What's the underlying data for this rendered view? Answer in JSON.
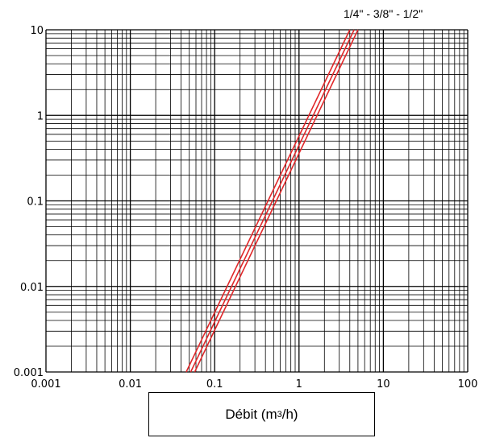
{
  "chart_data": {
    "type": "line",
    "x_scale": "log",
    "y_scale": "log",
    "xlim": [
      0.001,
      100
    ],
    "ylim": [
      0.001,
      10
    ],
    "x_ticks": [
      "0.001",
      "0.01",
      "0.1",
      "1",
      "10",
      "100"
    ],
    "y_ticks": [
      "0.001",
      "0.01",
      "0.1",
      "1",
      "10"
    ],
    "grid": true,
    "xlabel_prefix": "Débit (m",
    "xlabel_sup": "3",
    "xlabel_suffix": "/h)",
    "series_label": "1/4\" - 3/8\" - 1/2\"",
    "line_color": "#e0282a",
    "series": [
      {
        "x": [
          0.046,
          4.0
        ],
        "y": [
          0.001,
          10
        ]
      },
      {
        "x": [
          0.052,
          4.5
        ],
        "y": [
          0.001,
          10
        ]
      },
      {
        "x": [
          0.058,
          5.0
        ],
        "y": [
          0.001,
          10
        ]
      }
    ]
  }
}
